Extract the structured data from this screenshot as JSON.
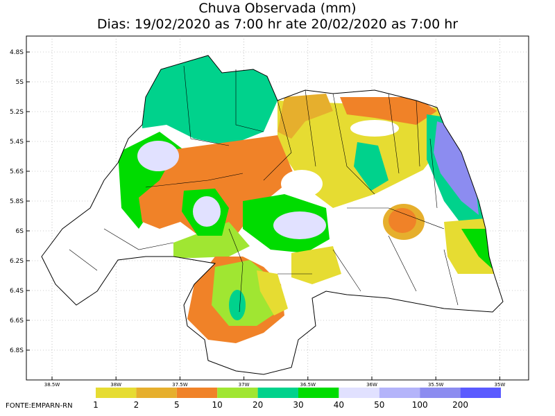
{
  "header": {
    "title": "Chuva Observada (mm)",
    "subtitle": "Dias: 19/02/2020 as 7:00 hr ate 20/02/2020 as 7:00 hr"
  },
  "map": {
    "lat_labels": [
      "4.8S",
      "5S",
      "5.2S",
      "5.4S",
      "5.6S",
      "5.8S",
      "6S",
      "6.2S",
      "6.4S",
      "6.6S",
      "6.8S"
    ],
    "lon_labels": [
      "38.5W",
      "38W",
      "37.5W",
      "37W",
      "36.5W",
      "36W",
      "35.5W",
      "35W"
    ]
  },
  "legend": {
    "labels": [
      "1",
      "2",
      "5",
      "10",
      "20",
      "30",
      "40",
      "50",
      "100",
      "200"
    ],
    "colors": [
      "#e6dc32",
      "#e6af2d",
      "#f08228",
      "#a0e632",
      "#00d28c",
      "#00dc00",
      "#e1e1ff",
      "#b4b4fa",
      "#8c8cf0",
      "#5a5aff"
    ]
  },
  "footer": {
    "source": "FONTE:EMPARN-RN"
  }
}
